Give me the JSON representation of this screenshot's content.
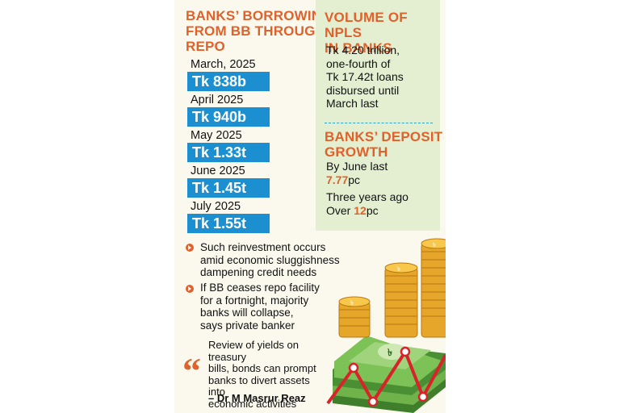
{
  "repo": {
    "heading_lines": [
      "BANKS’ BORROWING",
      "FROM BB THROUGH",
      "REPO"
    ],
    "items": [
      {
        "month": "March, 2025",
        "amount": "Tk 838b"
      },
      {
        "month": "April 2025",
        "amount": "Tk 940b"
      },
      {
        "month": "May 2025",
        "amount": "Tk 1.33t"
      },
      {
        "month": "June 2025",
        "amount": "Tk 1.45t"
      },
      {
        "month": "July 2025",
        "amount": "Tk 1.55t"
      }
    ]
  },
  "npl": {
    "heading_lines": [
      "VOLUME OF NPLS",
      "IN BANKS"
    ],
    "text_lines": [
      "Tk 4.20 trillion,",
      "one-fourth of",
      "Tk 17.42t loans",
      "disbursed until",
      "March last"
    ]
  },
  "deposit": {
    "heading_lines": [
      "BANKS’ DEPOSIT",
      "GROWTH"
    ],
    "line1": "By June last",
    "value1": "7.77",
    "unit1": "pc",
    "line2": "Three years ago",
    "prefix3": "Over ",
    "value3": "12",
    "unit3": "pc"
  },
  "bullets": [
    {
      "lines": [
        "Such reinvestment occurs",
        "amid economic sluggishness",
        "dampening credit needs"
      ]
    },
    {
      "lines": [
        "If BB ceases repo facility",
        "for a fortnight, majority",
        "banks will collapse,",
        "says private banker"
      ]
    }
  ],
  "quote": {
    "mark": "“",
    "lines": [
      "Review of yields on treasury",
      "bills, bonds can prompt",
      "banks to divert assets into",
      "economic activities"
    ],
    "author": "– Dr M Masrur Reaz"
  },
  "colors": {
    "accent": "#e0622a",
    "amount_bar": "#1c8fd0",
    "panel": "#e4efd2",
    "background": "#fbf9ee",
    "trend_line": "#d8232a"
  },
  "icons": [
    "taka-coin-stacks",
    "taka-banknote-stack",
    "rising-trend-line"
  ]
}
